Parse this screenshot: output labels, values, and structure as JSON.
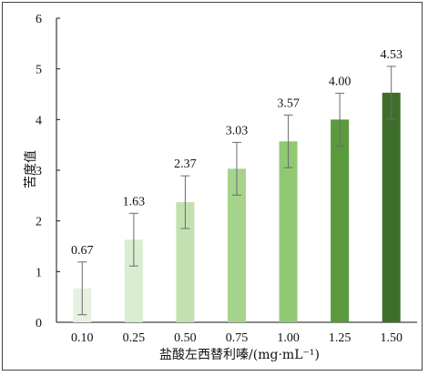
{
  "chart_data": {
    "type": "bar",
    "categories": [
      "0.10",
      "0.25",
      "0.50",
      "0.75",
      "1.00",
      "1.25",
      "1.50"
    ],
    "values": [
      0.67,
      1.63,
      2.37,
      3.03,
      3.57,
      4.0,
      4.53
    ],
    "value_labels": [
      "0.67",
      "1.63",
      "2.37",
      "3.03",
      "3.57",
      "4.00",
      "4.53"
    ],
    "errors": [
      0.52,
      0.52,
      0.52,
      0.52,
      0.52,
      0.52,
      0.52
    ],
    "bar_colors": [
      "#e6f2df",
      "#d9edd0",
      "#c2e1b0",
      "#a6d38b",
      "#90c971",
      "#5a9a3c",
      "#3f6e2a"
    ],
    "xlabel": "盐酸左西替利嗪/(mg·mL⁻¹)",
    "ylabel": "苦度值",
    "ylim": [
      0,
      6
    ],
    "yticks": [
      "0",
      "1",
      "2",
      "3",
      "4",
      "5",
      "6"
    ],
    "grid": false,
    "error_bar_color": "#6b6b6b"
  }
}
